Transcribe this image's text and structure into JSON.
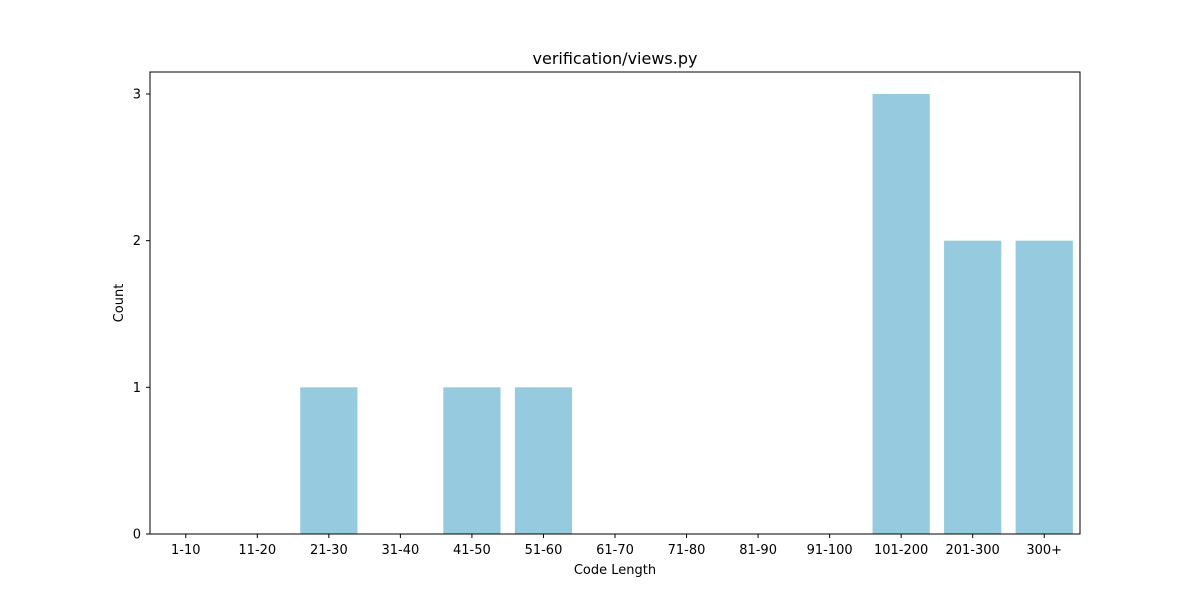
{
  "chart_data": {
    "type": "bar",
    "title": "verification/views.py",
    "xlabel": "Code Length",
    "ylabel": "Count",
    "categories": [
      "1-10",
      "11-20",
      "21-30",
      "31-40",
      "41-50",
      "51-60",
      "61-70",
      "71-80",
      "81-90",
      "91-100",
      "101-200",
      "201-300",
      "300+"
    ],
    "values": [
      0,
      0,
      1,
      0,
      1,
      1,
      0,
      0,
      0,
      0,
      3,
      2,
      2
    ],
    "ylim": [
      0,
      3.15
    ],
    "yticks": [
      0,
      1,
      2,
      3
    ],
    "grid": false,
    "bar_color": "#96cadf"
  }
}
